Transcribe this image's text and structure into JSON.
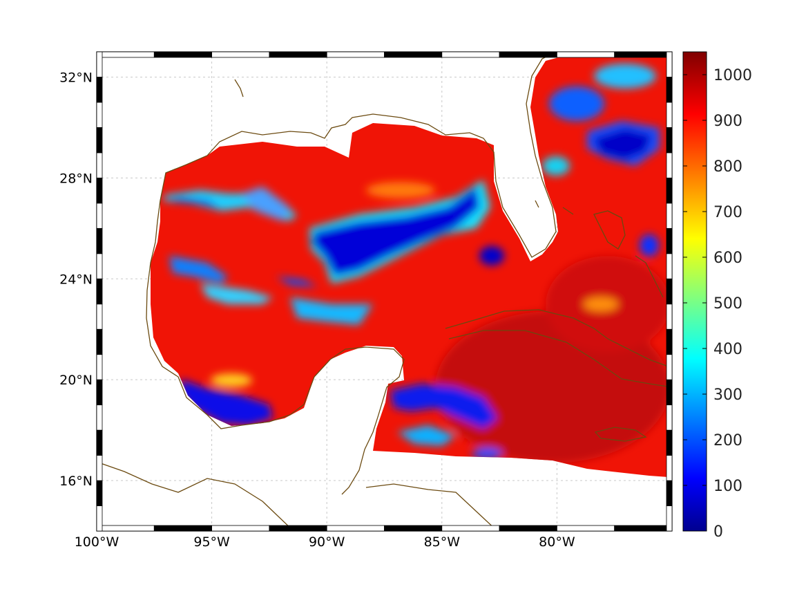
{
  "map": {
    "lon_range": [
      -100,
      -75
    ],
    "lat_range": [
      14,
      33
    ],
    "lon_ticks": [
      {
        "value": -100,
        "label": "100°W"
      },
      {
        "value": -95,
        "label": "95°W"
      },
      {
        "value": -90,
        "label": "90°W"
      },
      {
        "value": -85,
        "label": "85°W"
      },
      {
        "value": -80,
        "label": "80°W"
      }
    ],
    "lat_ticks": [
      {
        "value": 16,
        "label": "16°N"
      },
      {
        "value": 20,
        "label": "20°N"
      },
      {
        "value": 24,
        "label": "24°N"
      },
      {
        "value": 28,
        "label": "28°N"
      },
      {
        "value": 32,
        "label": "32°N"
      }
    ],
    "grid": true,
    "coastline_color": "#6b4a10",
    "frame": "black-and-white checkered border"
  },
  "colorbar": {
    "colormap": "jet",
    "range": [
      0,
      1050
    ],
    "ticks": [
      {
        "value": 0,
        "label": "0"
      },
      {
        "value": 100,
        "label": "100"
      },
      {
        "value": 200,
        "label": "200"
      },
      {
        "value": 300,
        "label": "300"
      },
      {
        "value": 400,
        "label": "400"
      },
      {
        "value": 500,
        "label": "500"
      },
      {
        "value": 600,
        "label": "600"
      },
      {
        "value": 700,
        "label": "700"
      },
      {
        "value": 800,
        "label": "800"
      },
      {
        "value": 900,
        "label": "900"
      },
      {
        "value": 1000,
        "label": "1000"
      }
    ]
  }
}
